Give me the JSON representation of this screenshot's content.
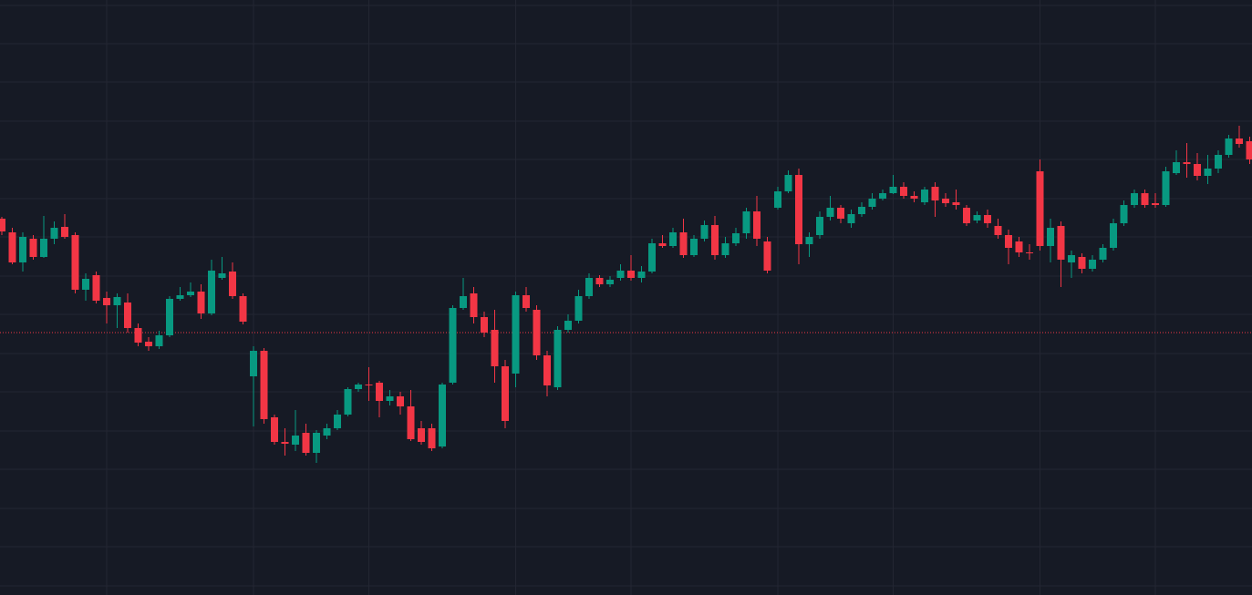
{
  "chart_data": {
    "type": "candlestick",
    "categories": [
      null,
      null,
      null,
      null,
      null,
      null,
      null,
      null,
      null,
      null,
      null,
      null,
      null,
      null,
      null,
      null,
      null,
      null,
      null,
      null,
      null,
      null,
      null,
      null,
      null,
      null,
      null,
      null,
      null,
      null,
      null,
      null,
      null,
      null,
      null,
      null,
      null,
      null,
      null,
      null,
      null,
      null,
      null,
      null,
      null,
      null,
      null,
      null,
      null,
      null,
      null,
      null,
      null,
      null,
      null,
      null,
      null,
      null,
      null,
      null,
      null,
      null,
      null,
      null,
      null,
      null,
      null,
      null,
      null,
      null,
      null,
      null,
      null,
      null,
      null,
      null,
      null,
      null,
      null,
      null,
      null,
      null,
      null,
      null,
      null,
      null,
      null,
      null,
      null,
      null,
      null,
      null,
      null,
      null,
      null,
      null,
      null,
      null,
      null,
      null,
      null,
      null,
      null,
      null,
      null,
      null,
      null,
      null,
      null,
      null,
      null,
      null,
      null,
      null,
      null,
      null,
      null,
      null,
      null,
      null
    ],
    "open": [
      413,
      398,
      365,
      391,
      371,
      391,
      404,
      395,
      335,
      351,
      326,
      318,
      321,
      293,
      278,
      273,
      285,
      325,
      329,
      333,
      309,
      348,
      355,
      328,
      240,
      268,
      195,
      168,
      165,
      178,
      156,
      175,
      183,
      198,
      226,
      231,
      233,
      213,
      218,
      207,
      183,
      183,
      163,
      233,
      315,
      331,
      305,
      291,
      251,
      243,
      329,
      313,
      263,
      228,
      291,
      301,
      328,
      348,
      341,
      348,
      356,
      348,
      355,
      386,
      383,
      398,
      373,
      391,
      406,
      373,
      386,
      397,
      421,
      388,
      425,
      443,
      461,
      385,
      395,
      415,
      425,
      408,
      418,
      426,
      435,
      441,
      448,
      438,
      431,
      448,
      435,
      431,
      425,
      411,
      417,
      405,
      395,
      388,
      376,
      465,
      383,
      405,
      365,
      371,
      358,
      368,
      381,
      408,
      428,
      441,
      430,
      428,
      463,
      475,
      473,
      460,
      468,
      483,
      501,
      498
    ],
    "high": [
      415,
      403,
      398,
      395,
      416,
      410,
      418,
      398,
      353,
      355,
      333,
      331,
      331,
      298,
      283,
      290,
      328,
      338,
      343,
      341,
      368,
      371,
      365,
      331,
      273,
      271,
      198,
      183,
      203,
      188,
      181,
      188,
      203,
      228,
      233,
      250,
      235,
      225,
      223,
      225,
      191,
      188,
      233,
      318,
      348,
      338,
      311,
      313,
      258,
      333,
      338,
      318,
      268,
      295,
      308,
      335,
      353,
      351,
      350,
      363,
      373,
      361,
      391,
      395,
      403,
      413,
      395,
      411,
      416,
      393,
      403,
      425,
      438,
      393,
      448,
      466,
      468,
      398,
      421,
      438,
      428,
      423,
      431,
      441,
      445,
      461,
      453,
      443,
      448,
      453,
      441,
      445,
      428,
      421,
      423,
      413,
      401,
      393,
      385,
      478,
      413,
      410,
      378,
      375,
      373,
      385,
      413,
      433,
      445,
      445,
      441,
      470,
      488,
      496,
      485,
      483,
      488,
      505,
      515,
      503
    ],
    "low": [
      395,
      363,
      355,
      368,
      370,
      385,
      391,
      331,
      323,
      320,
      298,
      293,
      288,
      273,
      268,
      270,
      283,
      323,
      327,
      303,
      307,
      346,
      325,
      297,
      185,
      188,
      165,
      153,
      158,
      153,
      145,
      171,
      181,
      196,
      223,
      213,
      195,
      208,
      198,
      169,
      165,
      158,
      161,
      231,
      313,
      298,
      283,
      233,
      183,
      228,
      311,
      258,
      218,
      225,
      288,
      298,
      325,
      338,
      338,
      345,
      345,
      343,
      353,
      381,
      381,
      370,
      371,
      388,
      368,
      370,
      383,
      391,
      383,
      353,
      423,
      441,
      363,
      371,
      391,
      411,
      408,
      403,
      415,
      423,
      433,
      440,
      435,
      431,
      428,
      415,
      426,
      423,
      405,
      408,
      403,
      391,
      363,
      371,
      368,
      378,
      365,
      338,
      348,
      353,
      355,
      365,
      378,
      405,
      425,
      425,
      425,
      426,
      461,
      458,
      455,
      451,
      463,
      480,
      491,
      473
    ],
    "close": [
      399,
      365,
      393,
      371,
      391,
      403,
      393,
      335,
      347,
      323,
      318,
      327,
      293,
      277,
      273,
      285,
      325,
      329,
      333,
      309,
      356,
      353,
      328,
      300,
      268,
      193,
      168,
      166,
      175,
      156,
      178,
      183,
      198,
      226,
      231,
      230,
      213,
      218,
      207,
      171,
      168,
      161,
      231,
      315,
      328,
      305,
      288,
      251,
      191,
      329,
      315,
      263,
      230,
      291,
      301,
      328,
      348,
      341,
      346,
      356,
      348,
      355,
      386,
      383,
      398,
      373,
      391,
      406,
      373,
      386,
      397,
      421,
      391,
      356,
      443,
      461,
      385,
      393,
      415,
      425,
      413,
      418,
      426,
      435,
      441,
      448,
      438,
      435,
      445,
      433,
      430,
      428,
      408,
      417,
      408,
      395,
      381,
      376,
      375,
      383,
      403,
      368,
      373,
      358,
      368,
      381,
      408,
      428,
      441,
      428,
      428,
      465,
      475,
      473,
      460,
      468,
      483,
      501,
      495,
      478
    ],
    "up_color": "#089981",
    "down_color": "#f23645",
    "ylim": [
      0,
      653
    ],
    "yticks": [
      647,
      605,
      563,
      520,
      478,
      435,
      393,
      350,
      308,
      265,
      223,
      180,
      138,
      95,
      53,
      10
    ],
    "xticks": [
      10,
      24,
      35,
      49,
      60,
      74,
      85,
      99,
      110
    ],
    "grid": true,
    "price_line": {
      "value": 288,
      "color": "#f23645"
    }
  }
}
